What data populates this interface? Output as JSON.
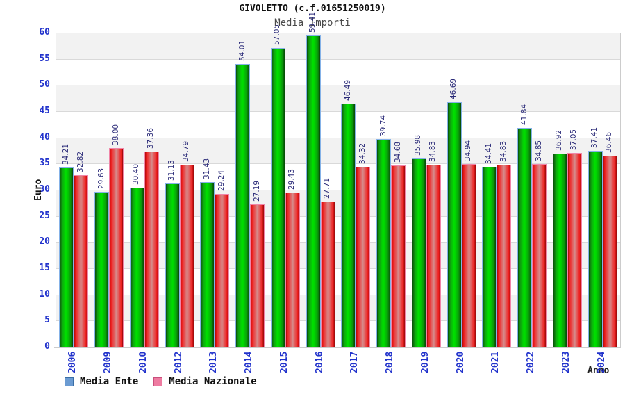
{
  "header": {
    "title": "GIVOLETTO (c.f.01651250019)",
    "subtitle": "Media Importi"
  },
  "axes": {
    "y_label": "Euro",
    "x_label": "Anno",
    "y_ticks": [
      0,
      5,
      10,
      15,
      20,
      25,
      30,
      35,
      40,
      45,
      50,
      55,
      60
    ]
  },
  "legend": {
    "items": [
      {
        "label": "Media Ente",
        "swatch_fill": "#6b9bd2",
        "swatch_border": "#3a6ea5"
      },
      {
        "label": "Media Nazionale",
        "swatch_fill": "#ee7ba1",
        "swatch_border": "#c94f7c"
      }
    ]
  },
  "chart_data": {
    "type": "bar",
    "title": "GIVOLETTO (c.f.01651250019)",
    "subtitle": "Media Importi",
    "xlabel": "Anno",
    "ylabel": "Euro",
    "ylim": [
      0,
      60
    ],
    "y_tick_step": 5,
    "grid": true,
    "banded_background": true,
    "legend_position": "bottom-left",
    "categories": [
      "2006",
      "2009",
      "2010",
      "2012",
      "2013",
      "2014",
      "2015",
      "2016",
      "2017",
      "2018",
      "2019",
      "2020",
      "2021",
      "2022",
      "2023",
      "2024"
    ],
    "series": [
      {
        "name": "Media Ente",
        "values": [
          34.21,
          29.63,
          30.4,
          31.13,
          31.43,
          54.01,
          57.05,
          59.41,
          46.49,
          39.74,
          35.98,
          46.69,
          34.41,
          41.84,
          36.92,
          37.41
        ]
      },
      {
        "name": "Media Nazionale",
        "values": [
          32.82,
          38.0,
          37.36,
          34.79,
          29.24,
          27.19,
          29.43,
          27.71,
          34.32,
          34.68,
          34.83,
          34.94,
          34.83,
          34.85,
          37.05,
          36.46
        ]
      }
    ]
  },
  "palette": {
    "tick_text": "#2233cc",
    "value_text": "#2a2a78",
    "grid_line": "#d9d9d9",
    "band_gray": "#f2f2f2",
    "band_white": "#ffffff",
    "axis_line": "#cccccc"
  }
}
